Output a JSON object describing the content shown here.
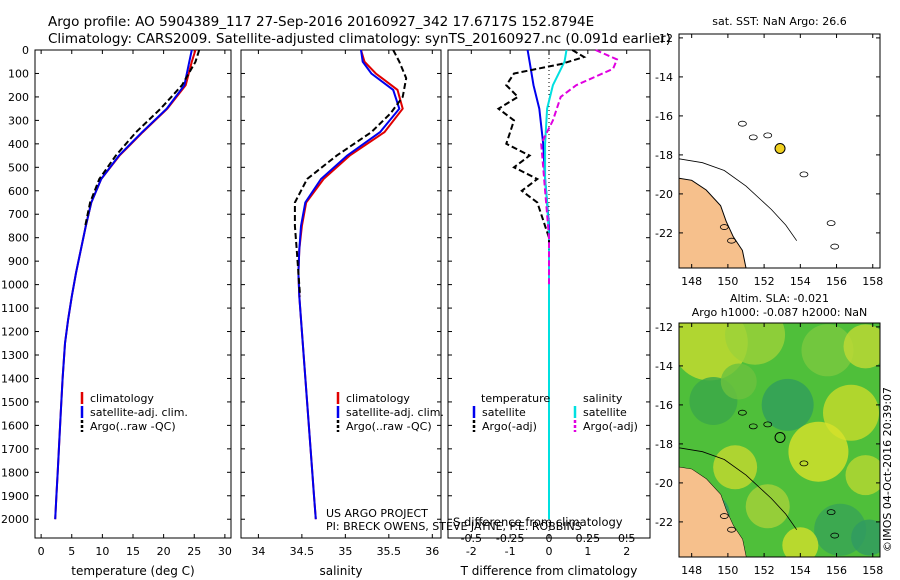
{
  "header": {
    "line1": "Argo profile: AO 5904389_117 27-Sep-2016 20160927_342 17.6717S 152.8794E",
    "line2": "Climatology: CARS2009. Satellite-adjusted climatology: synTS_20160927.nc (0.091d earlier)"
  },
  "colors": {
    "climatology": "#e00000",
    "satellite": "#0000ee",
    "argo": "#000000",
    "sal_satellite": "#00e0e0",
    "sal_argo": "#e000e0",
    "land": "#f6c08c",
    "argo_marker": "#f0d020"
  },
  "credit": {
    "project": "US ARGO PROJECT",
    "pi": "PI: BRECK OWENS, STEVE JAYNE, P.E. ROBBINS",
    "imos": "©IMOS 04-Oct-2016 20:39:07"
  },
  "chart_data": [
    {
      "type": "line",
      "name": "temperature-profile",
      "xlabel": "temperature (deg C)",
      "ylabel": "",
      "xlim": [
        -1,
        31
      ],
      "ylim": [
        2080,
        0
      ],
      "xticks": [
        0,
        5,
        10,
        15,
        20,
        25,
        30
      ],
      "yticks": [
        0,
        100,
        200,
        300,
        400,
        500,
        600,
        700,
        800,
        900,
        1000,
        1100,
        1200,
        1300,
        1400,
        1500,
        1600,
        1700,
        1800,
        1900,
        2000
      ],
      "legend": [
        "climatology",
        "satellite-adj. clim.",
        "Argo(..raw -QC)"
      ],
      "series": [
        {
          "name": "climatology",
          "style": "solid",
          "x": [
            25.2,
            24.6,
            23.6,
            20.6,
            16.6,
            12.8,
            9.8,
            8.2,
            7.3,
            6.5,
            5.7,
            5.0,
            4.4,
            3.9,
            3.5,
            3.2,
            2.9,
            2.7,
            2.5,
            2.3
          ],
          "y": [
            0,
            50,
            150,
            250,
            350,
            450,
            550,
            650,
            750,
            850,
            950,
            1050,
            1150,
            1250,
            1400,
            1550,
            1700,
            1800,
            1900,
            2000
          ]
        },
        {
          "name": "satellite-adj. clim.",
          "style": "solid",
          "x": [
            24.6,
            24.2,
            23.4,
            20.5,
            16.5,
            12.7,
            9.8,
            8.2,
            7.3,
            6.5,
            5.7,
            5.0,
            4.4,
            3.9,
            3.5,
            3.2,
            2.9,
            2.7,
            2.5,
            2.3
          ],
          "y": [
            0,
            50,
            150,
            250,
            350,
            450,
            550,
            650,
            750,
            850,
            950,
            1050,
            1150,
            1250,
            1400,
            1550,
            1700,
            1800,
            1900,
            2000
          ]
        },
        {
          "name": "Argo(..raw -QC)",
          "style": "dashed",
          "x": [
            25.8,
            25.2,
            23.0,
            19.5,
            15.5,
            12.2,
            9.5,
            8.0,
            7.2
          ],
          "y": [
            0,
            50,
            150,
            250,
            350,
            450,
            550,
            650,
            750
          ]
        }
      ]
    },
    {
      "type": "line",
      "name": "salinity-profile",
      "xlabel": "salinity",
      "ylabel": "",
      "xlim": [
        33.8,
        36.1
      ],
      "ylim": [
        2080,
        0
      ],
      "xticks": [
        34,
        34.5,
        35,
        35.5,
        36
      ],
      "legend": [
        "climatology",
        "satellite-adj. clim.",
        "Argo(..raw -QC)"
      ],
      "series": [
        {
          "name": "climatology",
          "style": "solid",
          "x": [
            35.18,
            35.22,
            35.35,
            35.6,
            35.66,
            35.45,
            35.05,
            34.75,
            34.55,
            34.5,
            34.47,
            34.46,
            34.47,
            34.5,
            34.53,
            34.56,
            34.59,
            34.62,
            34.64,
            34.66
          ],
          "y": [
            0,
            50,
            100,
            170,
            250,
            350,
            450,
            550,
            650,
            750,
            850,
            950,
            1050,
            1200,
            1350,
            1500,
            1650,
            1800,
            1900,
            2000
          ]
        },
        {
          "name": "satellite-adj. clim.",
          "style": "solid",
          "x": [
            35.18,
            35.2,
            35.3,
            35.55,
            35.62,
            35.4,
            35.02,
            34.72,
            34.54,
            34.49,
            34.47,
            34.46,
            34.47,
            34.5,
            34.53,
            34.56,
            34.59,
            34.62,
            34.64,
            34.66
          ],
          "y": [
            0,
            50,
            100,
            170,
            250,
            350,
            450,
            550,
            650,
            750,
            850,
            950,
            1050,
            1200,
            1350,
            1500,
            1650,
            1800,
            1900,
            2000
          ]
        },
        {
          "name": "Argo(..raw -QC)",
          "style": "dashed",
          "x": [
            35.55,
            35.62,
            35.7,
            35.66,
            35.52,
            35.3,
            34.9,
            34.56,
            34.42,
            34.42,
            34.44,
            34.46,
            34.48
          ],
          "y": [
            0,
            50,
            120,
            200,
            270,
            350,
            450,
            550,
            650,
            750,
            850,
            950,
            1050
          ]
        }
      ]
    },
    {
      "type": "line",
      "name": "difference-profile",
      "xlabel": "T difference from climatology",
      "xlabel_top": "S difference from climatology",
      "xlim": [
        -2.6,
        2.6
      ],
      "ylim": [
        2080,
        0
      ],
      "xticks": [
        -2,
        -1,
        0,
        1,
        2
      ],
      "sal_ticks": [
        "-0.5",
        "-0.25",
        "0",
        "0.25",
        "0.5"
      ],
      "legend_titles": [
        "temperature",
        "salinity"
      ],
      "legend": [
        "satellite",
        "Argo(-adj)",
        "satellite",
        "Argo(-adj)"
      ],
      "series": [
        {
          "name": "T satellite",
          "style": "solid",
          "x": [
            -0.55,
            -0.5,
            -0.4,
            -0.25,
            -0.15,
            -0.1,
            -0.05,
            0.0,
            0.0,
            0.0,
            0.0,
            0.0
          ],
          "y": [
            0,
            50,
            150,
            250,
            400,
            550,
            650,
            750,
            850,
            950,
            1050,
            1150
          ]
        },
        {
          "name": "S satellite",
          "style": "solid",
          "x": [
            0.45,
            0.4,
            0.1,
            -0.05,
            -0.1,
            -0.1,
            -0.05,
            0.0,
            0.0,
            0.0,
            0.0,
            0.0,
            0.0
          ],
          "y": [
            0,
            50,
            150,
            250,
            400,
            550,
            650,
            800,
            1000,
            1200,
            1400,
            1700,
            2000
          ]
        },
        {
          "name": "T Argo(-adj)",
          "style": "dashed",
          "x": [
            0.6,
            0.9,
            0.3,
            -0.9,
            -1.1,
            -0.8,
            -1.3,
            -0.9,
            -1.1,
            -0.5,
            -0.9,
            -0.3,
            -0.7,
            -0.3,
            -0.2,
            -0.1,
            0.0,
            0.0
          ],
          "y": [
            0,
            30,
            60,
            100,
            150,
            200,
            250,
            300,
            400,
            450,
            500,
            550,
            600,
            650,
            700,
            750,
            800,
            850
          ]
        },
        {
          "name": "S Argo(-adj)",
          "style": "dashed",
          "x": [
            1.2,
            1.75,
            1.65,
            0.7,
            0.3,
            0.1,
            -0.2,
            -0.15,
            -0.1,
            -0.05,
            0.0,
            0.0,
            0.0
          ],
          "y": [
            0,
            40,
            80,
            150,
            200,
            300,
            400,
            500,
            600,
            700,
            800,
            900,
            1000
          ]
        }
      ]
    },
    {
      "type": "scatter",
      "name": "sst-map",
      "title": "sat. SST: NaN Argo: 26.6",
      "xlim": [
        147.3,
        158.4
      ],
      "ylim": [
        -23.8,
        -11.8
      ],
      "xticks": [
        148,
        150,
        152,
        154,
        156,
        158
      ],
      "yticks": [
        -12,
        -14,
        -16,
        -18,
        -20,
        -22
      ],
      "points": [
        {
          "x": 152.88,
          "y": -17.67,
          "label": "Argo"
        }
      ]
    },
    {
      "type": "heatmap",
      "name": "sla-map",
      "title_line1": "Altim. SLA: -0.021",
      "title_line2": "Argo h1000: -0.087 h2000: NaN",
      "xlim": [
        147.3,
        158.4
      ],
      "ylim": [
        -23.8,
        -11.8
      ],
      "xticks": [
        148,
        150,
        152,
        154,
        156,
        158
      ],
      "yticks": [
        -12,
        -14,
        -16,
        -18,
        -20,
        -22
      ],
      "points": [
        {
          "x": 152.88,
          "y": -17.67,
          "label": "Argo"
        }
      ]
    }
  ]
}
